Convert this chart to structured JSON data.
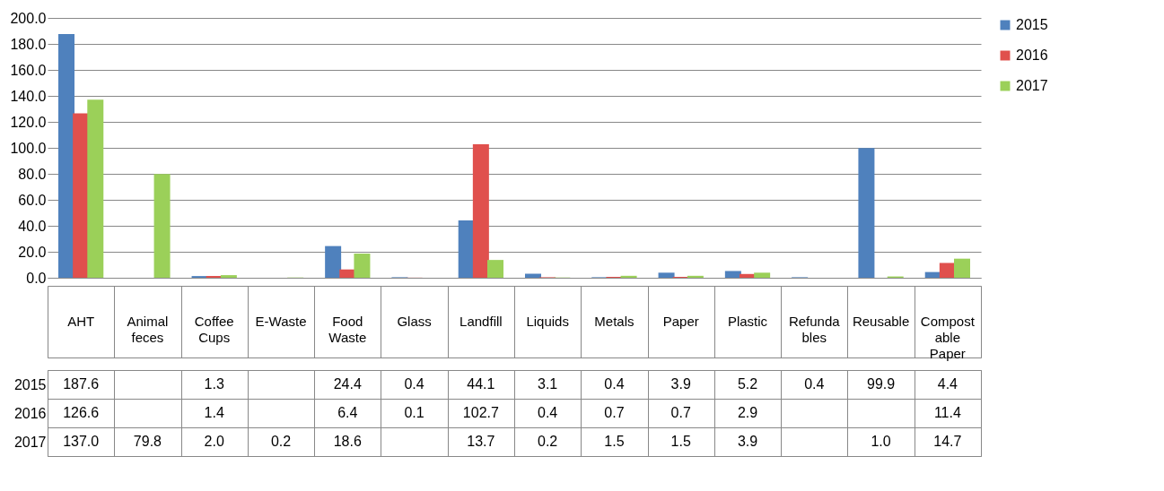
{
  "chart_data": {
    "type": "bar",
    "categories": [
      "AHT",
      "Animal feces",
      "Coffee Cups",
      "E-Waste",
      "Food Waste",
      "Glass",
      "Landfill",
      "Liquids",
      "Metals",
      "Paper",
      "Plastic",
      "Refundables",
      "Reusable",
      "Compostable Paper"
    ],
    "series": [
      {
        "name": "2015",
        "color": "#4f81bd",
        "values": [
          187.6,
          null,
          1.3,
          null,
          24.4,
          0.4,
          44.1,
          3.1,
          0.4,
          3.9,
          5.2,
          0.4,
          99.9,
          4.4
        ],
        "value_labels": [
          "187.6",
          null,
          "1.3",
          null,
          "24.4",
          "0.4",
          "44.1",
          "3.1",
          "0.4",
          "3.9",
          "5.2",
          "0.4",
          "99.9",
          "4.4"
        ]
      },
      {
        "name": "2016",
        "color": "#e0504d",
        "values": [
          126.6,
          null,
          1.4,
          null,
          6.4,
          0.1,
          102.7,
          0.4,
          0.7,
          0.7,
          2.9,
          null,
          null,
          11.4
        ],
        "value_labels": [
          "126.6",
          null,
          "1.4",
          null,
          "6.4",
          "0.1",
          "102.7",
          "0.4",
          "0.7",
          "0.7",
          "2.9",
          null,
          null,
          "11.4"
        ]
      },
      {
        "name": "2017",
        "color": "#9bd059",
        "values": [
          137.0,
          79.8,
          2.0,
          0.2,
          18.6,
          null,
          13.7,
          0.2,
          1.5,
          1.5,
          3.9,
          null,
          1.0,
          14.7
        ],
        "value_labels": [
          "137.0",
          "79.8",
          "2.0",
          "0.2",
          "18.6",
          null,
          "13.7",
          "0.2",
          "1.5",
          "1.5",
          "3.9",
          null,
          "1.0",
          "14.7"
        ]
      }
    ],
    "ylim": [
      0,
      200
    ],
    "yticks": [
      {
        "value": 0,
        "label": "0.0"
      },
      {
        "value": 20,
        "label": "20.0"
      },
      {
        "value": 40,
        "label": "40.0"
      },
      {
        "value": 60,
        "label": "60.0"
      },
      {
        "value": 80,
        "label": "80.0"
      },
      {
        "value": 100,
        "label": "100.0"
      },
      {
        "value": 120,
        "label": "120.0"
      },
      {
        "value": 140,
        "label": "140.0"
      },
      {
        "value": 160,
        "label": "160.0"
      },
      {
        "value": 180,
        "label": "180.0"
      },
      {
        "value": 200,
        "label": "200.0"
      }
    ],
    "grid": "y",
    "legend": "right"
  }
}
